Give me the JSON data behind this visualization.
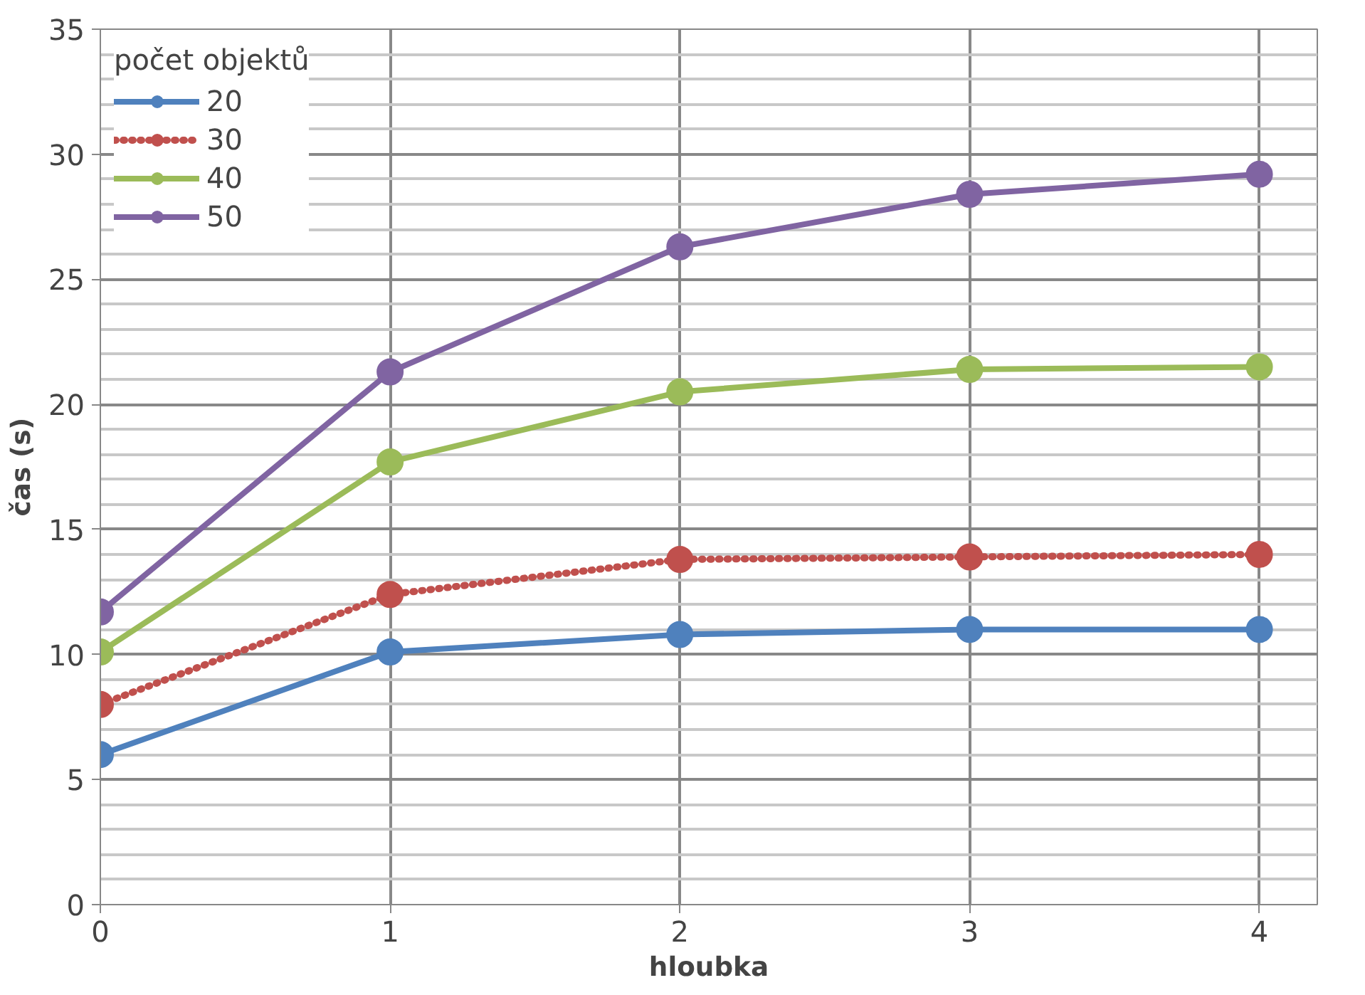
{
  "chart_data": {
    "type": "line",
    "xlabel": "hloubka",
    "ylabel": "čas (s)",
    "legend_title": "počet objektů",
    "x": [
      0,
      1,
      2,
      3,
      4
    ],
    "xlim": [
      0,
      4.2
    ],
    "xticks": [
      0,
      1,
      2,
      3,
      4
    ],
    "ylim": [
      0,
      35
    ],
    "yticks": [
      0,
      {
        "value": 1,
        "label": null
      },
      {
        "value": 2,
        "label": null
      },
      {
        "value": 3,
        "label": null
      },
      {
        "value": 4,
        "label": null
      },
      5,
      {
        "value": 6,
        "label": null
      },
      {
        "value": 7,
        "label": null
      },
      {
        "value": 8,
        "label": null
      },
      {
        "value": 9,
        "label": null
      },
      10,
      {
        "value": 11,
        "label": null
      },
      {
        "value": 12,
        "label": null
      },
      {
        "value": 13,
        "label": null
      },
      {
        "value": 14,
        "label": null
      },
      15,
      {
        "value": 16,
        "label": null
      },
      {
        "value": 17,
        "label": null
      },
      {
        "value": 18,
        "label": null
      },
      {
        "value": 19,
        "label": null
      },
      20,
      {
        "value": 21,
        "label": null
      },
      {
        "value": 22,
        "label": null
      },
      {
        "value": 23,
        "label": null
      },
      {
        "value": 24,
        "label": null
      },
      25,
      {
        "value": 26,
        "label": null
      },
      {
        "value": 27,
        "label": null
      },
      {
        "value": 28,
        "label": null
      },
      {
        "value": 29,
        "label": null
      },
      30,
      {
        "value": 31,
        "label": null
      },
      {
        "value": 32,
        "label": null
      },
      {
        "value": 33,
        "label": null
      },
      {
        "value": 34,
        "label": null
      },
      35
    ],
    "grid": true,
    "legend": "top left",
    "marker": "circle",
    "series": [
      {
        "name": "20",
        "color": "#4f81bd",
        "values": [
          6.0,
          10.1,
          10.8,
          11.0,
          11.0
        ]
      },
      {
        "name": "30",
        "color": "#c0504d",
        "line_style": "dotted",
        "values": [
          8.0,
          12.4,
          13.8,
          13.9,
          14.0
        ]
      },
      {
        "name": "40",
        "color": "#9bbb59",
        "values": [
          10.1,
          17.7,
          20.5,
          21.4,
          21.5
        ]
      },
      {
        "name": "50",
        "color": "#8064a2",
        "values": [
          11.7,
          21.3,
          26.3,
          28.4,
          29.2
        ]
      }
    ]
  }
}
